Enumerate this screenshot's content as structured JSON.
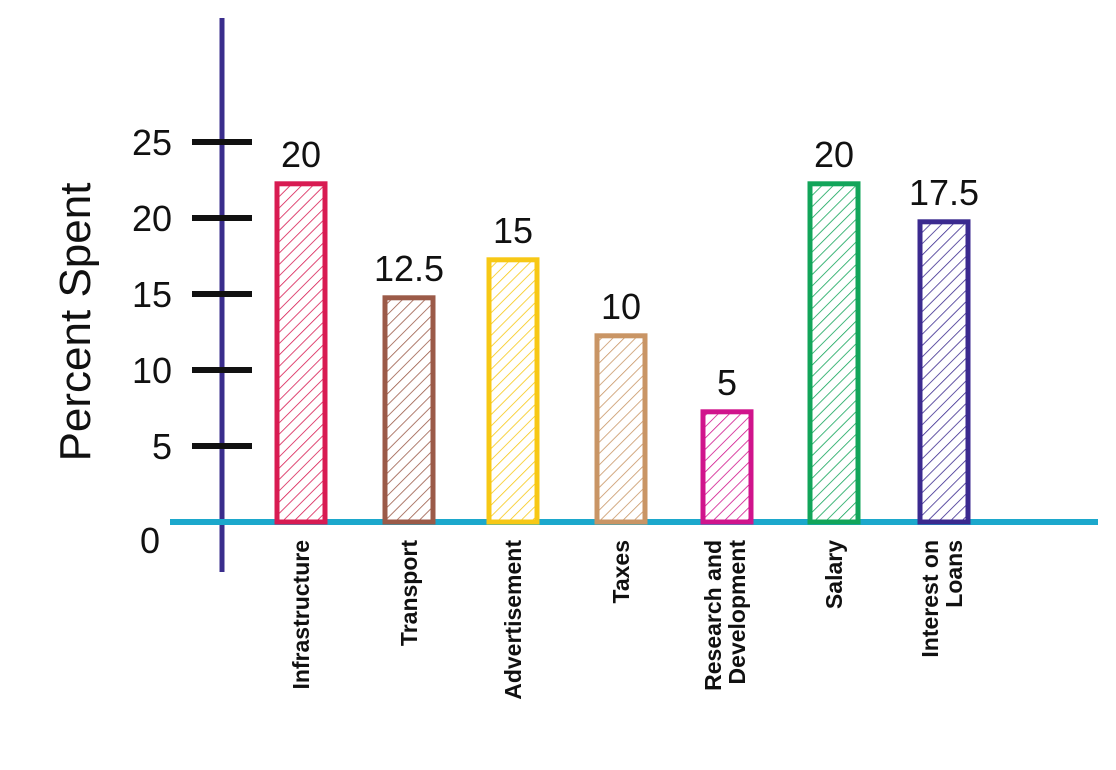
{
  "chart_data": {
    "type": "bar",
    "ylabel": "Percent Spent",
    "xlabel": "",
    "ylim": [
      0,
      25
    ],
    "yticks": [
      5,
      10,
      15,
      20,
      25
    ],
    "zero_label": "0",
    "grid": false,
    "legend": "none",
    "categories": [
      [
        "Infrastructure"
      ],
      [
        "Transport"
      ],
      [
        "Advertisement"
      ],
      [
        "Taxes"
      ],
      [
        "Research and",
        "Development"
      ],
      [
        "Salary"
      ],
      [
        "Interest on",
        "Loans"
      ]
    ],
    "values": [
      20,
      12.5,
      15,
      10,
      5,
      20,
      17.5
    ],
    "value_labels": [
      "20",
      "12.5",
      "15",
      "10",
      "5",
      "20",
      "17.5"
    ],
    "bar_colors": [
      "#d81b52",
      "#9b5a48",
      "#f7c815",
      "#c99565",
      "#d0148c",
      "#12a55a",
      "#3b2a8f"
    ],
    "yaxis_color": "#3a2d8c",
    "xaxis_color": "#1ca8cc"
  }
}
